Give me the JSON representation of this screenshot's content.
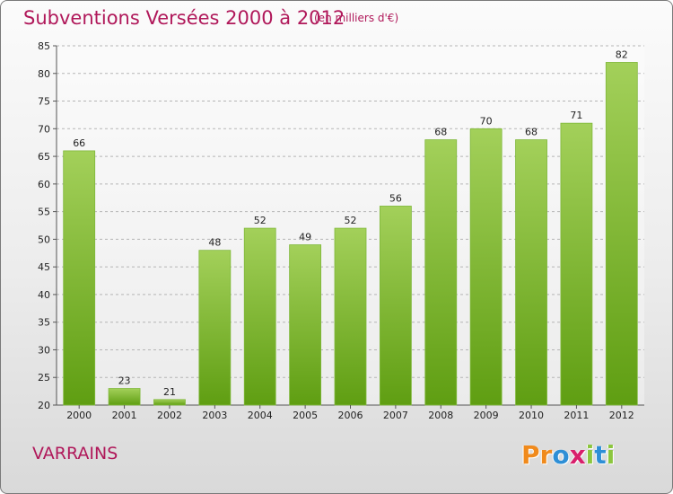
{
  "title": "Subventions Versées 2000 à 2012",
  "subtitle": "(en milliers d'€)",
  "commune": "VARRAINS",
  "logo": {
    "letters": [
      "P",
      "r",
      "o",
      "x",
      "i",
      "t",
      "i"
    ],
    "colors": [
      "#f08a1c",
      "#f08a1c",
      "#2e8fd6",
      "#d81f6b",
      "#8cc63f",
      "#2e8fd6",
      "#8cc63f"
    ]
  },
  "colors": {
    "bar_top": "#a3d05a",
    "bar_bottom": "#5f9e12",
    "title": "#b0185a",
    "grid": "#b5b5b5"
  },
  "chart_data": {
    "type": "bar",
    "categories": [
      "2000",
      "2001",
      "2002",
      "2003",
      "2004",
      "2005",
      "2006",
      "2007",
      "2008",
      "2009",
      "2010",
      "2011",
      "2012"
    ],
    "values": [
      66,
      23,
      21,
      48,
      52,
      49,
      52,
      56,
      68,
      70,
      68,
      71,
      82
    ],
    "ylim": [
      20,
      85
    ],
    "yticks": [
      20,
      25,
      30,
      35,
      40,
      45,
      50,
      55,
      60,
      65,
      70,
      75,
      80,
      85
    ],
    "grid": true,
    "xlabel": "",
    "ylabel": ""
  }
}
